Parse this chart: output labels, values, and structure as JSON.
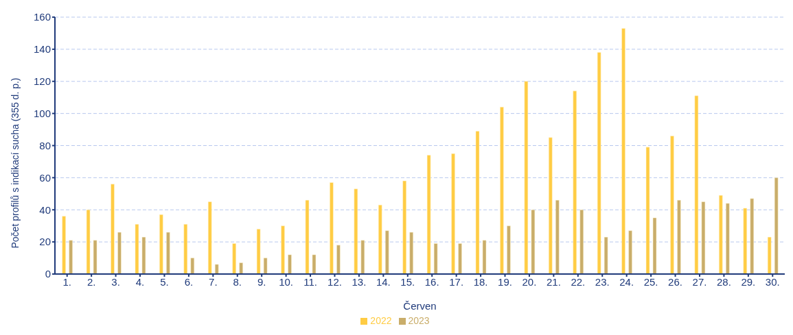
{
  "chart_data": {
    "type": "bar",
    "xlabel": "Červen",
    "ylabel": "Počet profilů s indikací sucha (355 d. p.)",
    "categories": [
      "1.",
      "2.",
      "3.",
      "4.",
      "5.",
      "6.",
      "7.",
      "8.",
      "9.",
      "10.",
      "11.",
      "12.",
      "13.",
      "14.",
      "15.",
      "16.",
      "17.",
      "18.",
      "19.",
      "20.",
      "21.",
      "22.",
      "23.",
      "24.",
      "25.",
      "26.",
      "27.",
      "28.",
      "29.",
      "30."
    ],
    "series": [
      {
        "name": "2022",
        "color": "#ffcc44",
        "values": [
          36,
          40,
          56,
          31,
          37,
          31,
          45,
          19,
          28,
          30,
          46,
          57,
          53,
          43,
          58,
          74,
          75,
          89,
          104,
          120,
          85,
          114,
          138,
          153,
          79,
          86,
          111,
          49,
          41,
          23
        ]
      },
      {
        "name": "2023",
        "color": "#c9ad6a",
        "values": [
          21,
          21,
          26,
          23,
          26,
          10,
          6,
          7,
          10,
          12,
          12,
          18,
          21,
          27,
          26,
          19,
          19,
          21,
          30,
          40,
          46,
          40,
          23,
          27,
          35,
          46,
          45,
          44,
          47,
          60
        ]
      }
    ],
    "ylim": [
      0,
      160
    ],
    "yticks": [
      0,
      20,
      40,
      60,
      80,
      100,
      120,
      140,
      160
    ],
    "grid": "y",
    "legend": "bottom"
  }
}
